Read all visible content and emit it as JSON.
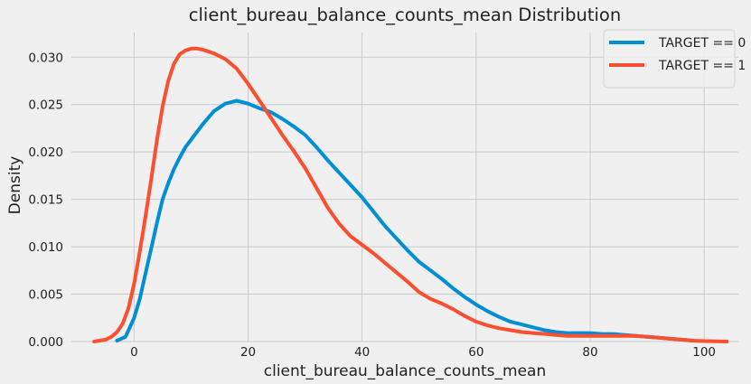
{
  "chart_data": {
    "type": "line",
    "title": "client_bureau_balance_counts_mean Distribution",
    "xlabel": "client_bureau_balance_counts_mean",
    "ylabel": "Density",
    "xlim": [
      -11,
      106
    ],
    "ylim": [
      0,
      0.0326
    ],
    "xticks": [
      0,
      20,
      40,
      60,
      80,
      100
    ],
    "xtick_labels": [
      "0",
      "20",
      "40",
      "60",
      "80",
      "100"
    ],
    "yticks": [
      0,
      0.005,
      0.01,
      0.015,
      0.02,
      0.025,
      0.03
    ],
    "ytick_labels": [
      "0.000",
      "0.005",
      "0.010",
      "0.015",
      "0.020",
      "0.025",
      "0.030"
    ],
    "grid": true,
    "legend_position": "top-right",
    "series": [
      {
        "name": "TARGET == 0",
        "color": "#008fd5",
        "x": [
          -3,
          -1.5,
          0,
          1,
          2,
          3,
          4,
          5,
          6,
          7,
          8,
          9,
          10,
          12,
          14,
          16,
          18,
          20,
          22,
          24,
          26,
          28,
          30,
          32,
          34,
          36,
          38,
          40,
          42,
          44,
          46,
          48,
          50,
          52,
          54,
          56,
          58,
          60,
          62,
          64,
          66,
          68,
          70,
          72,
          74,
          76,
          78,
          80,
          82,
          84,
          86,
          88,
          90,
          92,
          94,
          96,
          98
        ],
        "y": [
          0.0001,
          0.0005,
          0.0025,
          0.0045,
          0.0072,
          0.0098,
          0.0125,
          0.015,
          0.0167,
          0.0182,
          0.0194,
          0.0205,
          0.0213,
          0.0229,
          0.0243,
          0.0251,
          0.0254,
          0.0251,
          0.0246,
          0.0242,
          0.0235,
          0.0227,
          0.0218,
          0.0205,
          0.0191,
          0.0178,
          0.0165,
          0.0152,
          0.0137,
          0.0122,
          0.0109,
          0.0096,
          0.0084,
          0.0075,
          0.0066,
          0.0056,
          0.0047,
          0.0039,
          0.0032,
          0.0026,
          0.0021,
          0.0018,
          0.0015,
          0.0012,
          0.001,
          0.0009,
          0.0009,
          0.0009,
          0.0008,
          0.0008,
          0.0007,
          0.0006,
          0.0005,
          0.0004,
          0.0003,
          0.0002,
          0.0001
        ]
      },
      {
        "name": "TARGET == 1",
        "color": "#fc4f30",
        "x": [
          -7,
          -5,
          -4,
          -3,
          -2,
          -1,
          0,
          1,
          2,
          3,
          4,
          5,
          6,
          7,
          8,
          9,
          10,
          11,
          12,
          14,
          16,
          18,
          20,
          22,
          24,
          26,
          28,
          30,
          32,
          34,
          36,
          38,
          40,
          42,
          44,
          46,
          48,
          50,
          52,
          54,
          56,
          58,
          60,
          62,
          64,
          66,
          68,
          70,
          72,
          74,
          76,
          78,
          80,
          82,
          84,
          86,
          88,
          90,
          92,
          94,
          96,
          98,
          100,
          102,
          104
        ],
        "y": [
          0,
          0.0002,
          0.0005,
          0.001,
          0.0019,
          0.0035,
          0.0061,
          0.0095,
          0.0132,
          0.0171,
          0.0212,
          0.0248,
          0.0275,
          0.0293,
          0.0303,
          0.0307,
          0.0309,
          0.0309,
          0.0308,
          0.0304,
          0.0298,
          0.0288,
          0.0272,
          0.0254,
          0.0236,
          0.0218,
          0.0201,
          0.0183,
          0.0162,
          0.0141,
          0.0124,
          0.0111,
          0.0102,
          0.0093,
          0.0083,
          0.0073,
          0.0063,
          0.0052,
          0.0045,
          0.004,
          0.0034,
          0.0027,
          0.0021,
          0.0017,
          0.0014,
          0.0012,
          0.001,
          0.0009,
          0.0008,
          0.0007,
          0.0006,
          0.0006,
          0.0006,
          0.0006,
          0.0006,
          0.0006,
          0.0006,
          0.0005,
          0.0004,
          0.0003,
          0.0002,
          0.0001,
          5e-05,
          2e-05,
          0
        ]
      }
    ]
  }
}
